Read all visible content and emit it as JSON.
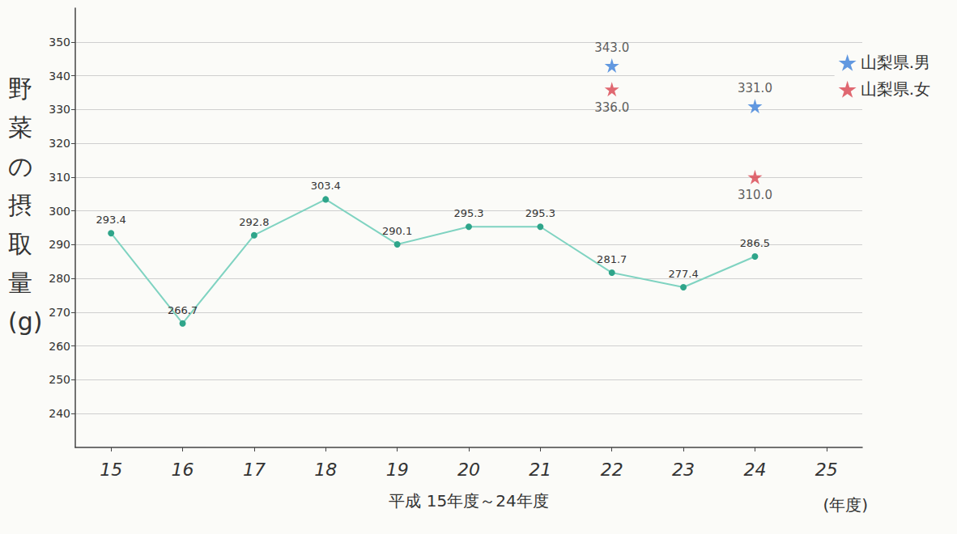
{
  "chart_data": {
    "type": "line",
    "x_label": "平成 15年度～24年度",
    "y_label": "野菜の摂取量(g)",
    "annotations": [
      "(年度)"
    ],
    "categories": [
      "15",
      "16",
      "17",
      "18",
      "19",
      "20",
      "21",
      "22",
      "23",
      "24",
      "25"
    ],
    "ylim": [
      230,
      360
    ],
    "yticks": [
      240,
      250,
      260,
      270,
      280,
      290,
      300,
      310,
      320,
      330,
      340,
      350
    ],
    "grid": true,
    "legend": "upper right",
    "series": [
      {
        "type": "line",
        "color": "#2fa58a",
        "marker": "circle",
        "data_labels": true,
        "values": [
          293.4,
          266.7,
          292.8,
          303.4,
          290.1,
          295.3,
          295.3,
          281.7,
          277.4,
          286.5,
          null
        ]
      },
      {
        "name": "山梨県.男",
        "type": "scatter",
        "color": "#3b7fd9",
        "marker": "star",
        "data_labels": true,
        "values": [
          null,
          null,
          null,
          null,
          null,
          null,
          null,
          343.0,
          null,
          331.0,
          null
        ],
        "value_labels": [
          null,
          null,
          null,
          null,
          null,
          null,
          null,
          "343.0",
          null,
          "331.0",
          null
        ]
      },
      {
        "name": "山梨県.女",
        "type": "scatter",
        "color": "#d9434f",
        "marker": "star",
        "data_labels": true,
        "values": [
          null,
          null,
          null,
          null,
          null,
          null,
          null,
          336.0,
          null,
          310.0,
          null
        ],
        "value_labels": [
          null,
          null,
          null,
          null,
          null,
          null,
          null,
          "336.0",
          null,
          "310.0",
          null
        ]
      }
    ]
  }
}
